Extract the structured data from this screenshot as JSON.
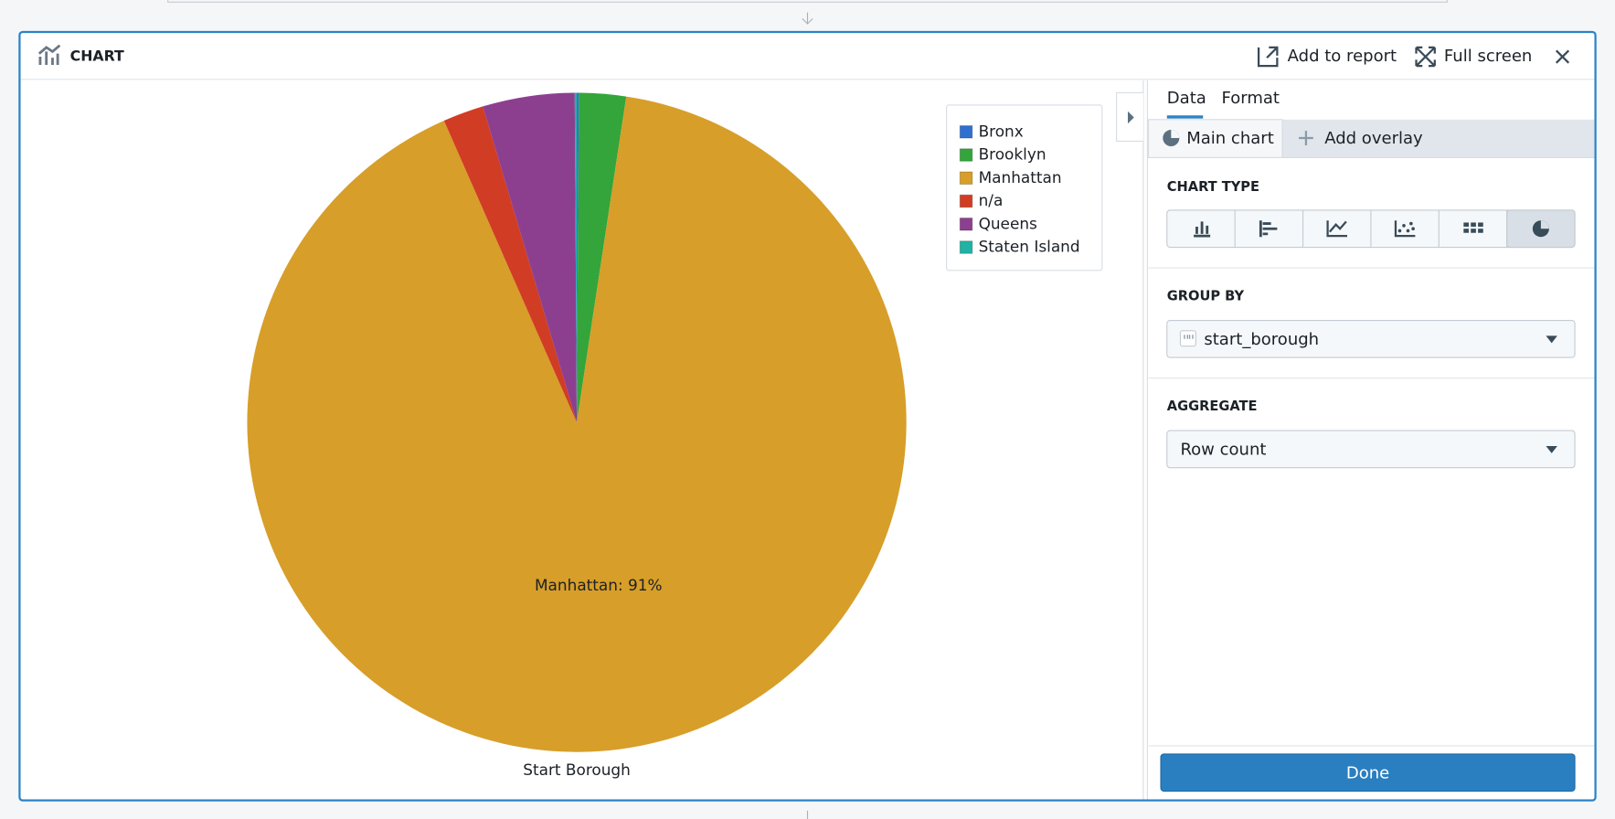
{
  "header": {
    "title": "CHART",
    "add_to_report": "Add to report",
    "full_screen": "Full screen"
  },
  "chart_data": {
    "type": "pie",
    "categories": [
      "Bronx",
      "Brooklyn",
      "Manhattan",
      "n/a",
      "Queens",
      "Staten Island"
    ],
    "values": [
      0.1,
      2.3,
      91,
      2.0,
      4.5,
      0.1
    ],
    "value_labels": [
      null,
      null,
      "Manhattan: 91%",
      null,
      null,
      null
    ],
    "colors": [
      "#2f6fd0",
      "#33a53a",
      "#d79e29",
      "#d13c24",
      "#8d3f8f",
      "#21b2a4"
    ],
    "x_label": "Start Borough",
    "legend": "top-right"
  },
  "panel": {
    "tabs": [
      "Data",
      "Format"
    ],
    "main_chart": "Main chart",
    "add_overlay": "Add overlay",
    "chart_type_label": "CHART TYPE",
    "group_by_label": "GROUP BY",
    "group_by_value": "start_borough",
    "aggregate_label": "AGGREGATE",
    "aggregate_value": "Row count",
    "done": "Done"
  }
}
